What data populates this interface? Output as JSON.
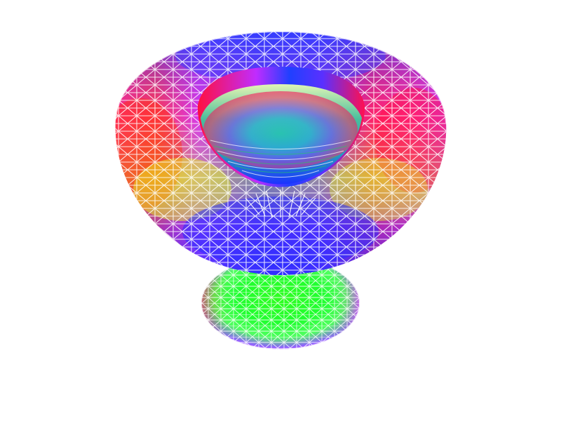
{
  "scene": {
    "background_color": "#ffffff",
    "wireframe_color": "#ffffff",
    "render_style": "rainbow-shaded mesh with white wireframe overlay",
    "objects": [
      {
        "name": "upper-lobe",
        "shape": "torus-like bowl",
        "dominant_colors": [
          "#ff0000",
          "#ff00ff",
          "#0000ff",
          "#00ff00",
          "#ffff00"
        ]
      },
      {
        "name": "lower-lobe",
        "shape": "sphere",
        "dominant_colors": [
          "#00ff00",
          "#ff00ff",
          "#0000ff",
          "#ff8800"
        ]
      }
    ]
  }
}
